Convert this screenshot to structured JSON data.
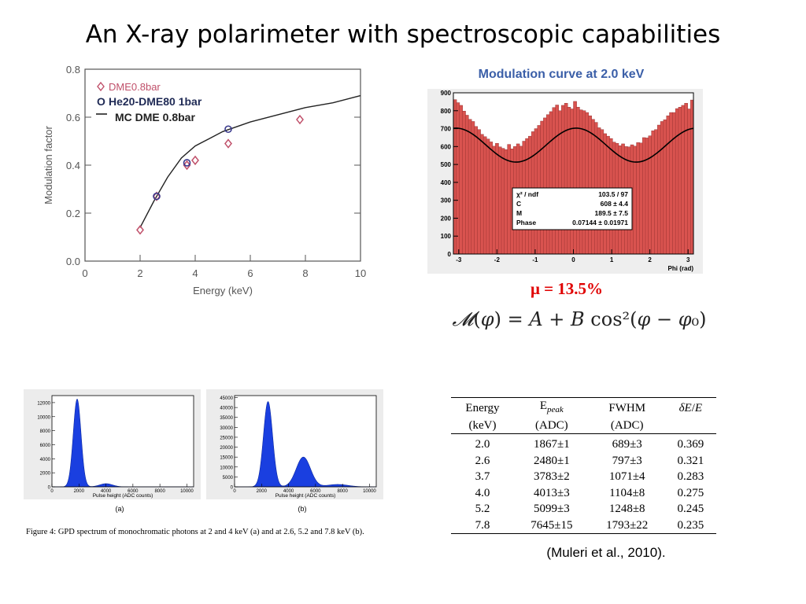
{
  "title": "An X-ray polarimeter with spectroscopic capabilities",
  "modulation_curve_title": "Modulation curve at 2.0 keV",
  "mu_text": "μ = 13.5%",
  "formula_text": "M(φ) = A + B cos²(φ − φ₀)",
  "citation": "(Muleri et al., 2010).",
  "figure_caption": "Figure 4:  GPD spectrum of monochromatic photons at 2 and 4 keV (a) and at 2.6, 5.2 and 7.8 keV (b).",
  "fit_box": {
    "rows": [
      {
        "label": "χ² / ndf",
        "value": "103.5 / 97"
      },
      {
        "label": "C",
        "value": "608 ± 4.4"
      },
      {
        "label": "M",
        "value": "189.5 ± 7.5"
      },
      {
        "label": "Phase",
        "value": "0.07144 ± 0.01971"
      }
    ]
  },
  "colors": {
    "histogram_fill": "#d9534f",
    "spectrum_fill": "#1a3fe0",
    "diamond": "#c0506a",
    "circle": "#3a3a8c",
    "title_blue": "#3b5fa8",
    "mu_red": "#e00000"
  },
  "table": {
    "header_row1": [
      "Energy",
      "E_peak",
      "FWHM",
      "δE/E"
    ],
    "header_row2": [
      "(keV)",
      "(ADC)",
      "(ADC)",
      ""
    ],
    "rows": [
      [
        "2.0",
        "1867±1",
        "689±3",
        "0.369"
      ],
      [
        "2.6",
        "2480±1",
        "797±3",
        "0.321"
      ],
      [
        "3.7",
        "3783±2",
        "1071±4",
        "0.283"
      ],
      [
        "4.0",
        "4013±3",
        "1104±8",
        "0.275"
      ],
      [
        "5.2",
        "5099±3",
        "1248±8",
        "0.245"
      ],
      [
        "7.8",
        "7645±15",
        "1793±22",
        "0.235"
      ]
    ]
  },
  "chart_data": [
    {
      "type": "scatter",
      "title": "",
      "xlabel": "Energy (keV)",
      "ylabel": "Modulation factor",
      "xlim": [
        0,
        10
      ],
      "ylim": [
        0,
        0.8
      ],
      "xticks": [
        0,
        2,
        4,
        6,
        8,
        10
      ],
      "yticks": [
        0.0,
        0.2,
        0.4,
        0.6,
        0.8
      ],
      "legend_position": "top-left",
      "series": [
        {
          "name": "DME0.8bar",
          "marker": "diamond",
          "x": [
            2.0,
            2.6,
            3.7,
            4.0,
            5.2,
            7.8
          ],
          "y": [
            0.13,
            0.27,
            0.4,
            0.42,
            0.49,
            0.59
          ]
        },
        {
          "name": "He20-DME80 1bar",
          "marker": "circle",
          "x": [
            2.6,
            3.7,
            5.2
          ],
          "y": [
            0.27,
            0.41,
            0.55
          ]
        },
        {
          "name": "MC DME 0.8bar",
          "marker": "line",
          "x": [
            2.0,
            2.5,
            3.0,
            3.5,
            4.0,
            4.5,
            5.0,
            6.0,
            7.0,
            8.0,
            9.0,
            10.0
          ],
          "y": [
            0.14,
            0.25,
            0.35,
            0.43,
            0.48,
            0.51,
            0.54,
            0.58,
            0.61,
            0.64,
            0.66,
            0.69
          ]
        }
      ]
    },
    {
      "type": "bar",
      "title": "",
      "xlabel": "Phi (rad)",
      "ylabel": "",
      "xlim": [
        -3.14,
        3.14
      ],
      "ylim": [
        0,
        900
      ],
      "xticks": [
        -3,
        -2,
        -1,
        0,
        1,
        2,
        3
      ],
      "yticks": [
        0,
        100,
        200,
        300,
        400,
        500,
        600,
        700,
        800,
        900
      ],
      "fit": {
        "C": 608,
        "M": 189.5,
        "phase": 0.07144
      },
      "values": [
        862,
        845,
        830,
        798,
        775,
        752,
        740,
        712,
        695,
        668,
        655,
        642,
        626,
        602,
        618,
        598,
        590,
        583,
        612,
        587,
        600,
        615,
        602,
        630,
        645,
        658,
        683,
        700,
        718,
        742,
        760,
        778,
        795,
        818,
        832,
        800,
        830,
        842,
        820,
        810,
        852,
        820,
        805,
        800,
        790,
        772,
        752,
        735,
        705,
        695,
        672,
        658,
        645,
        625,
        618,
        605,
        615,
        600,
        598,
        610,
        602,
        622,
        620,
        650,
        648,
        660,
        688,
        695,
        720,
        740,
        750,
        772,
        790,
        790,
        812,
        820,
        830,
        842,
        810,
        860
      ]
    },
    {
      "type": "area",
      "title": "",
      "label": "(a)",
      "xlabel": "Pulse height (ADC counts)",
      "ylabel": "",
      "xlim": [
        0,
        10500
      ],
      "ylim": [
        0,
        13000
      ],
      "xticks": [
        0,
        2000,
        4000,
        6000,
        8000,
        10000
      ],
      "yticks": [
        0,
        2000,
        4000,
        6000,
        8000,
        10000,
        12000
      ],
      "peaks": [
        {
          "mu": 1867,
          "sigma": 290,
          "amp": 12500
        },
        {
          "mu": 4013,
          "sigma": 470,
          "amp": 450
        }
      ]
    },
    {
      "type": "area",
      "title": "",
      "label": "(b)",
      "xlabel": "Pulse height (ADC counts)",
      "ylabel": "",
      "xlim": [
        0,
        10500
      ],
      "ylim": [
        0,
        46000
      ],
      "xticks": [
        0,
        2000,
        4000,
        6000,
        8000,
        10000
      ],
      "yticks": [
        0,
        5000,
        10000,
        15000,
        20000,
        25000,
        30000,
        35000,
        40000,
        45000
      ],
      "peaks": [
        {
          "mu": 2480,
          "sigma": 338,
          "amp": 43000
        },
        {
          "mu": 5099,
          "sigma": 530,
          "amp": 15000
        },
        {
          "mu": 7645,
          "sigma": 760,
          "amp": 1200
        }
      ]
    }
  ]
}
